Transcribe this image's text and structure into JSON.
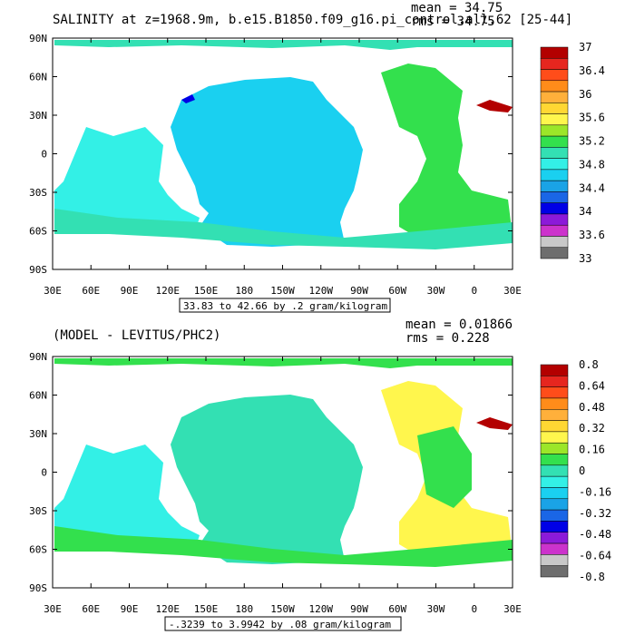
{
  "chart_data": [
    {
      "type": "map",
      "title": "SALINITY at z=1968.9m, b.e15.B1850.f09_g16.pi_control.all.62 [25-44]",
      "stats": {
        "mean": "mean = 34.75",
        "rms": "rms = 34.75"
      },
      "subtitle": "33.83 to 42.66 by .2 gram/kilogram",
      "x_ticks": [
        "30E",
        "60E",
        "90E",
        "120E",
        "150E",
        "180",
        "150W",
        "120W",
        "90W",
        "60W",
        "30W",
        "0",
        "30E"
      ],
      "y_ticks": [
        "90N",
        "60N",
        "30N",
        "0",
        "30S",
        "60S",
        "90S"
      ],
      "colorbar": {
        "labels": [
          "37",
          "36.4",
          "36",
          "35.6",
          "35.2",
          "34.8",
          "34.4",
          "34",
          "33.6",
          "33"
        ],
        "colors": [
          "#b30000",
          "#e6261f",
          "#ff4d1a",
          "#ff8c1a",
          "#ffb03b",
          "#ffd733",
          "#fff64d",
          "#9ce629",
          "#33e04d",
          "#33e0b3",
          "#33f0e6",
          "#1ad0f0",
          "#1aa3e6",
          "#1a66e6",
          "#0000e6",
          "#8c1ad9",
          "#cc33cc",
          "#c8c8c8",
          "#6e6e6e"
        ]
      }
    },
    {
      "type": "map",
      "title": "(MODEL - LEVITUS/PHC2)",
      "stats": {
        "mean": "mean = 0.01866",
        "rms": "rms = 0.228"
      },
      "subtitle": "-.3239 to 3.9942 by .08 gram/kilogram",
      "x_ticks": [
        "30E",
        "60E",
        "90E",
        "120E",
        "150E",
        "180",
        "150W",
        "120W",
        "90W",
        "60W",
        "30W",
        "0",
        "30E"
      ],
      "y_ticks": [
        "90N",
        "60N",
        "30N",
        "0",
        "30S",
        "60S",
        "90S"
      ],
      "colorbar": {
        "labels": [
          "0.8",
          "0.64",
          "0.48",
          "0.32",
          "0.16",
          "0",
          "-0.16",
          "-0.32",
          "-0.48",
          "-0.64",
          "-0.8"
        ],
        "colors": [
          "#b30000",
          "#e6261f",
          "#ff4d1a",
          "#ff8c1a",
          "#ffb03b",
          "#ffd733",
          "#fff64d",
          "#9ce629",
          "#33e04d",
          "#33e0b3",
          "#33f0e6",
          "#1ad0f0",
          "#1aa3e6",
          "#1a66e6",
          "#0000e6",
          "#8c1ad9",
          "#cc33cc",
          "#c8c8c8",
          "#6e6e6e"
        ]
      }
    }
  ]
}
